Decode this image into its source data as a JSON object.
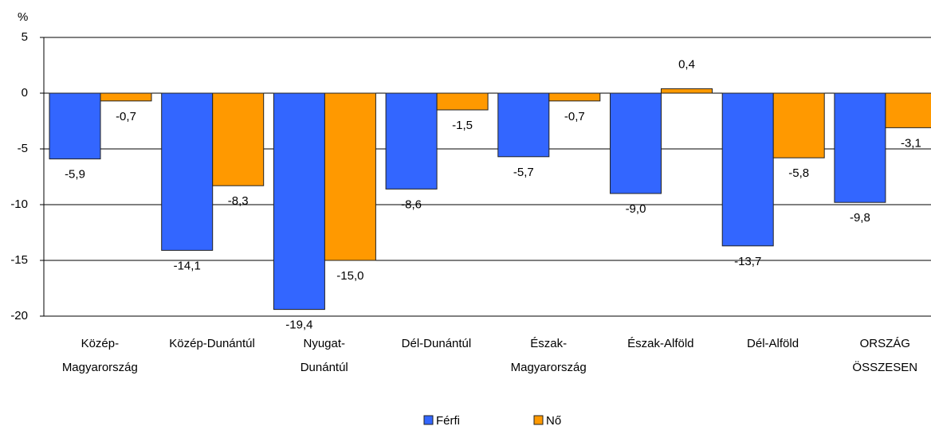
{
  "chart_data": {
    "type": "bar",
    "y_label": "%",
    "categories": [
      [
        "Közép-",
        "Magyarország"
      ],
      [
        "Közép-Dunántúl"
      ],
      [
        "Nyugat-",
        "Dunántúl"
      ],
      [
        "Dél-Dunántúl"
      ],
      [
        "Észak-",
        "Magyarország"
      ],
      [
        "Észak-Alföld"
      ],
      [
        "Dél-Alföld"
      ],
      [
        "ORSZÁG",
        "ÖSSZESEN"
      ]
    ],
    "series": [
      {
        "name": "Férfi",
        "color": "#3366ff",
        "values": [
          -5.9,
          -14.1,
          -19.4,
          -8.6,
          -5.7,
          -9.0,
          -13.7,
          -9.8
        ],
        "value_labels": [
          "-5,9",
          "-14,1",
          "-19,4",
          "-8,6",
          "-5,7",
          "-9,0",
          "-13,7",
          "-9,8"
        ]
      },
      {
        "name": "Nő",
        "color": "#ff9900",
        "values": [
          -0.7,
          -8.3,
          -15.0,
          -1.5,
          -0.7,
          0.4,
          -5.8,
          -3.1
        ],
        "value_labels": [
          "-0,7",
          "-8,3",
          "-15,0",
          "-1,5",
          "-0,7",
          "0,4",
          "-5,8",
          "-3,1"
        ]
      }
    ],
    "ylim": [
      -20,
      5
    ],
    "yticks": [
      5,
      0,
      -5,
      -10,
      -15,
      -20
    ],
    "grid": true,
    "legend": "bottom"
  }
}
